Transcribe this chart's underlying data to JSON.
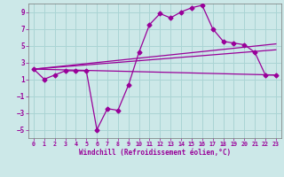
{
  "title": "",
  "xlabel": "Windchill (Refroidissement éolien,°C)",
  "ylabel": "",
  "bg_color": "#cce8e8",
  "line_color": "#990099",
  "grid_color": "#aad4d4",
  "xlim": [
    -0.5,
    23.5
  ],
  "ylim": [
    -6,
    10
  ],
  "xticks": [
    0,
    1,
    2,
    3,
    4,
    5,
    6,
    7,
    8,
    9,
    10,
    11,
    12,
    13,
    14,
    15,
    16,
    17,
    18,
    19,
    20,
    21,
    22,
    23
  ],
  "yticks": [
    -5,
    -3,
    -1,
    1,
    3,
    5,
    7,
    9
  ],
  "series1_x": [
    0,
    1,
    2,
    3,
    4,
    5,
    6,
    7,
    8,
    9,
    10,
    11,
    12,
    13,
    14,
    15,
    16,
    17,
    18,
    19,
    20,
    21,
    22,
    23
  ],
  "series1_y": [
    2.2,
    1.0,
    1.5,
    2.0,
    2.0,
    2.0,
    -5.0,
    -2.5,
    -2.7,
    0.3,
    4.2,
    7.5,
    8.8,
    8.3,
    9.0,
    9.5,
    9.8,
    7.0,
    5.5,
    5.3,
    5.1,
    4.2,
    1.5,
    1.5
  ],
  "series2_x": [
    0,
    23
  ],
  "series2_y": [
    2.2,
    5.2
  ],
  "series3_x": [
    0,
    23
  ],
  "series3_y": [
    2.2,
    4.5
  ],
  "series4_x": [
    0,
    23
  ],
  "series4_y": [
    2.2,
    1.5
  ]
}
